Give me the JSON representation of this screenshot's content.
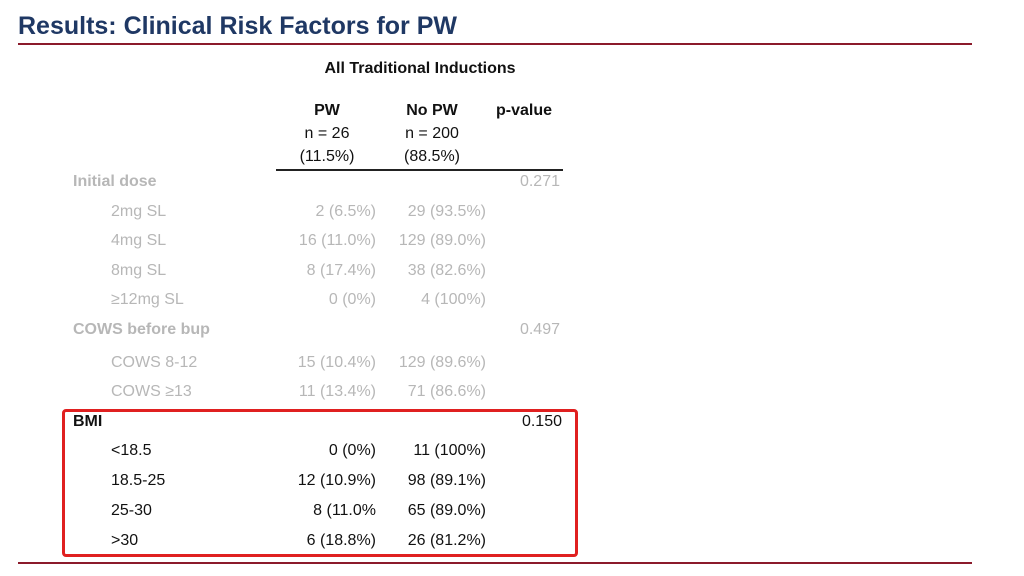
{
  "slide": {
    "title": "Results: Clinical Risk Factors for PW",
    "subtitle": "All Traditional Inductions"
  },
  "table": {
    "columns": [
      {
        "label": "PW",
        "n": "n = 26",
        "pct": "(11.5%)"
      },
      {
        "label": "No PW",
        "n": "n = 200",
        "pct": "(88.5%)"
      },
      {
        "label": "p-value"
      }
    ],
    "groups": [
      {
        "label": "Initial dose",
        "p_value": "0.271",
        "rows": [
          {
            "label": "2mg SL",
            "pw": "2 (6.5%)",
            "nopw": "29 (93.5%)"
          },
          {
            "label": "4mg SL",
            "pw": "16 (11.0%)",
            "nopw": "129 (89.0%)"
          },
          {
            "label": "8mg SL",
            "pw": "8 (17.4%)",
            "nopw": "38 (82.6%)"
          },
          {
            "label": "≥12mg SL",
            "pw": "0 (0%)",
            "nopw": "4 (100%)"
          }
        ]
      },
      {
        "label": "COWS before bup",
        "p_value": "0.497",
        "rows": [
          {
            "label": "COWS 8-12",
            "pw": "15 (10.4%)",
            "nopw": "129 (89.6%)"
          },
          {
            "label": "COWS ≥13",
            "pw": "11 (13.4%)",
            "nopw": "71 (86.6%)"
          }
        ]
      },
      {
        "label": "BMI",
        "p_value": "0.150",
        "rows": [
          {
            "label": "<18.5",
            "pw": "0 (0%)",
            "nopw": "11 (100%)"
          },
          {
            "label": "18.5-25",
            "pw": "12 (10.9%)",
            "nopw": "98 (89.1%)"
          },
          {
            "label": "25-30",
            "pw": "8 (11.0%",
            "nopw": "65 (89.0%)"
          },
          {
            "label": ">30",
            "pw": "6 (18.8%)",
            "nopw": "26 (81.2%)"
          }
        ]
      }
    ]
  },
  "colors": {
    "title": "#1f3864",
    "rule": "#8b1a2b",
    "highlight": "#e02020",
    "faded_text": "#b7b7b7"
  }
}
